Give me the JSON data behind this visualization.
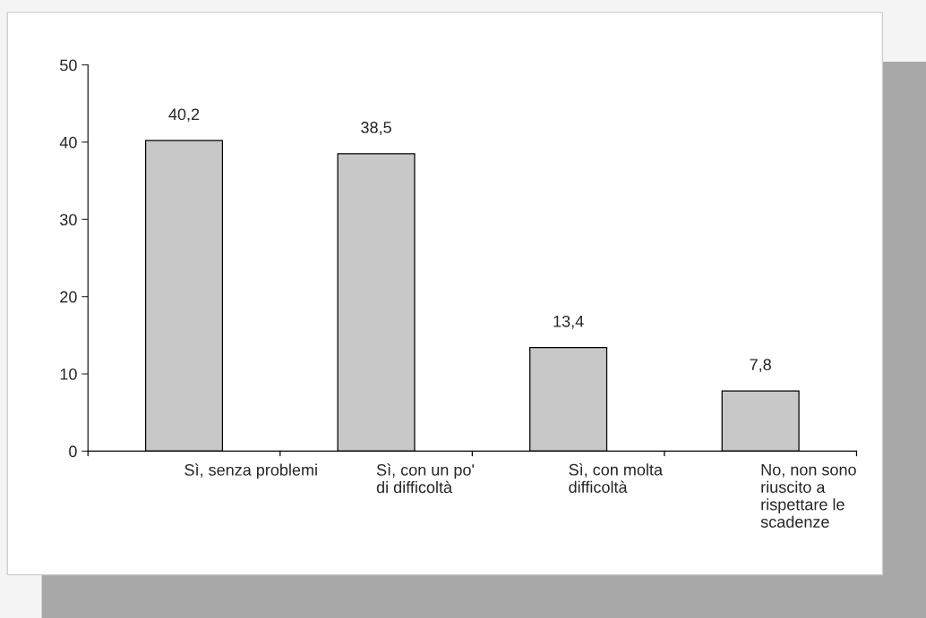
{
  "chart_data": {
    "type": "bar",
    "categories": [
      "Sì, senza problemi",
      "Sì, con un po'\ndi difficoltà",
      "Sì, con molta\ndifficoltà",
      "No, non sono\nriuscito a\nrispettare le\nscadenze"
    ],
    "values": [
      40.2,
      38.5,
      13.4,
      7.8
    ],
    "value_labels": [
      "40,2",
      "38,5",
      "13,4",
      "7,8"
    ],
    "color": "#c8c8c8",
    "ylim": [
      0,
      50
    ],
    "yticks": [
      0,
      10,
      20,
      30,
      40,
      50
    ],
    "grid": false
  }
}
